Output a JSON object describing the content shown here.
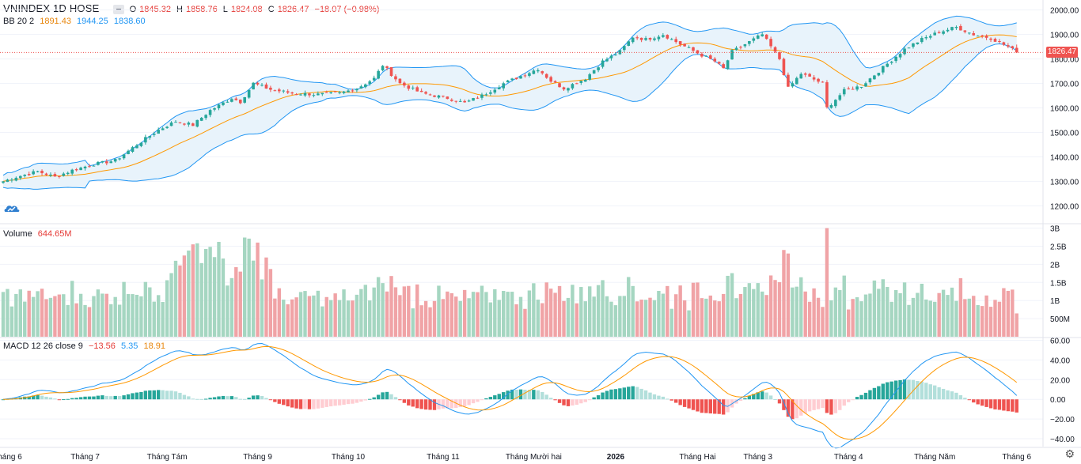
{
  "header": {
    "symbol_line": "VNINDEX  1D  HOSE",
    "o_label": "O",
    "o": "1845.32",
    "h_label": "H",
    "h": "1858.76",
    "l_label": "L",
    "l": "1824.08",
    "c_label": "C",
    "c": "1826.47",
    "change": "−18.07 (−0.98%)"
  },
  "bb": {
    "label": "BB 20 2",
    "middle": "1891.43",
    "upper": "1944.25",
    "lower": "1838.60"
  },
  "volume": {
    "label": "Volume",
    "value": "644.65M"
  },
  "macd": {
    "label": "MACD 12 26 close 9",
    "hist": "−13.56",
    "macd": "5.35",
    "signal": "18.91"
  },
  "last_price_tag": "1826.47",
  "colors": {
    "up": "#26a69a",
    "down": "#ef5350",
    "up_vol": "#a5d6c1",
    "down_vol": "#f0a3a6",
    "bb_band": "#2196f3",
    "bb_mid": "#ff9800",
    "bb_fill": "#e8f3fb",
    "macd_line": "#2196f3",
    "signal_line": "#ff9800",
    "hist_pos_strong": "#26a69a",
    "hist_pos_weak": "#b2dfdb",
    "hist_neg_strong": "#ef5350",
    "hist_neg_weak": "#ffcdd2",
    "grid": "#f0f3fa",
    "axis_text": "#131722",
    "header_red": "#e53935",
    "header_orange": "#e8860c",
    "header_blue": "#2196f3"
  },
  "chart_data": [
    {
      "type": "candlestick",
      "title": "VNINDEX 1D HOSE",
      "y_ticks": [
        "1200.00",
        "1300.00",
        "1400.00",
        "1500.00",
        "1600.00",
        "1700.00",
        "1800.00",
        "1900.00",
        "2000.00"
      ],
      "y_tick_values": [
        1200,
        1300,
        1400,
        1500,
        1600,
        1700,
        1800,
        1900,
        2000
      ],
      "ylim": [
        1130,
        2015
      ],
      "x_ticks": [
        "Tháng 6",
        "Tháng 7",
        "Tháng Tám",
        "Tháng 9",
        "Tháng 10",
        "Tháng 11",
        "Tháng Mười hai",
        "2026",
        "Tháng Hai",
        "Tháng 3",
        "Tháng 4",
        "Tháng Năm",
        "Tháng 6"
      ],
      "x_tick_index": [
        1,
        19,
        38,
        59,
        80,
        102,
        123,
        142,
        161,
        175,
        196,
        216,
        235
      ],
      "close_anchors": [
        [
          0,
          1300
        ],
        [
          3,
          1318
        ],
        [
          8,
          1340
        ],
        [
          12,
          1318
        ],
        [
          16,
          1345
        ],
        [
          21,
          1370
        ],
        [
          26,
          1385
        ],
        [
          31,
          1450
        ],
        [
          36,
          1510
        ],
        [
          40,
          1545
        ],
        [
          44,
          1530
        ],
        [
          48,
          1590
        ],
        [
          53,
          1640
        ],
        [
          55,
          1625
        ],
        [
          58,
          1700
        ],
        [
          62,
          1675
        ],
        [
          67,
          1660
        ],
        [
          73,
          1655
        ],
        [
          78,
          1660
        ],
        [
          82,
          1680
        ],
        [
          86,
          1720
        ],
        [
          88,
          1775
        ],
        [
          92,
          1700
        ],
        [
          97,
          1660
        ],
        [
          103,
          1640
        ],
        [
          107,
          1620
        ],
        [
          111,
          1650
        ],
        [
          116,
          1700
        ],
        [
          120,
          1730
        ],
        [
          124,
          1760
        ],
        [
          127,
          1710
        ],
        [
          130,
          1680
        ],
        [
          135,
          1720
        ],
        [
          139,
          1790
        ],
        [
          143,
          1830
        ],
        [
          146,
          1890
        ],
        [
          149,
          1880
        ],
        [
          153,
          1900
        ],
        [
          157,
          1860
        ],
        [
          162,
          1815
        ],
        [
          165,
          1790
        ],
        [
          167,
          1760
        ],
        [
          169,
          1830
        ],
        [
          173,
          1870
        ],
        [
          176,
          1900
        ],
        [
          180,
          1800
        ],
        [
          182,
          1680
        ],
        [
          185,
          1740
        ],
        [
          190,
          1700
        ],
        [
          191,
          1600
        ],
        [
          195,
          1670
        ],
        [
          199,
          1690
        ],
        [
          201,
          1720
        ],
        [
          205,
          1780
        ],
        [
          209,
          1840
        ],
        [
          213,
          1880
        ],
        [
          217,
          1910
        ],
        [
          221,
          1930
        ],
        [
          225,
          1900
        ],
        [
          229,
          1885
        ],
        [
          233,
          1850
        ],
        [
          235,
          1826.47
        ]
      ],
      "last": {
        "open": 1845.32,
        "high": 1858.76,
        "low": 1824.08,
        "close": 1826.47
      },
      "bollinger": {
        "period": 20,
        "stddev": 2,
        "upper": 1944.25,
        "middle": 1891.43,
        "lower": 1838.6
      }
    },
    {
      "type": "bar",
      "title": "Volume",
      "y_ticks": [
        "500M",
        "1B",
        "1.5B",
        "2B",
        "2.5B",
        "3B"
      ],
      "y_tick_values": [
        0.5,
        1,
        1.5,
        2,
        2.5,
        3
      ],
      "ylim": [
        0,
        3.1
      ],
      "unit": "billion shares",
      "last_value": 0.64465
    },
    {
      "type": "line",
      "title": "MACD 12 26 close 9",
      "y_ticks": [
        "−40.00",
        "−20.00",
        "0.00",
        "20.00",
        "40.00",
        "60.00"
      ],
      "y_tick_values": [
        -40,
        -20,
        0,
        20,
        40,
        60
      ],
      "ylim": [
        -48,
        62
      ],
      "series": [
        {
          "name": "MACD",
          "last": 5.35
        },
        {
          "name": "Signal",
          "last": 18.91
        },
        {
          "name": "Histogram",
          "last": -13.56
        }
      ]
    }
  ]
}
